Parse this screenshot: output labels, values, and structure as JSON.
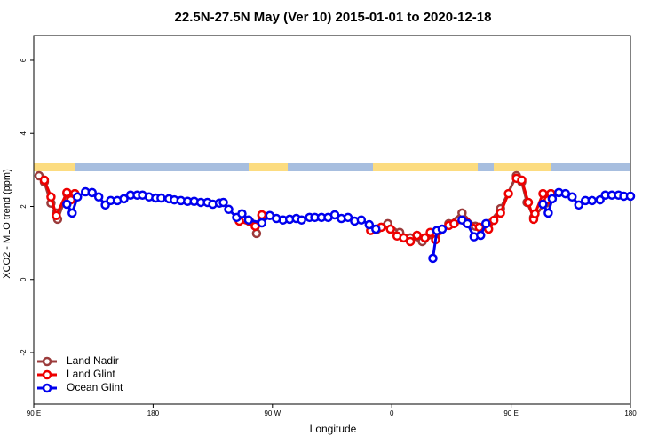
{
  "chart_data": {
    "type": "line",
    "title": "22.5N-27.5N May (Ver 10)   2015-01-01 to 2020-12-18",
    "x_label": "Longitude",
    "y_label": "XCO2 - MLO trend (ppm)",
    "xlim": [
      90,
      540
    ],
    "ylim": [
      -3.41,
      6.68
    ],
    "xticks": [
      {
        "value": 90,
        "label": "90 E"
      },
      180,
      {
        "value": 270,
        "label": "90 W"
      },
      {
        "value": 360,
        "label": "0"
      },
      {
        "value": 450,
        "label": "90 E"
      },
      {
        "value": 540,
        "label": "180"
      }
    ],
    "yticks": [
      -2,
      0,
      2,
      4,
      6
    ],
    "legend": "bottom-left",
    "series": [
      {
        "name": "Land Nadir",
        "color": "#9b3b3b",
        "x": [
          94,
          98,
          103,
          107,
          108,
          115,
          119,
          121,
          null,
          253,
          258,
          262,
          null,
          349,
          357,
          366,
          374,
          383,
          393,
          403,
          413,
          423,
          433,
          442,
          454,
          458,
          462,
          467,
          476,
          480
        ],
        "values": [
          2.84,
          2.67,
          2.09,
          1.82,
          1.65,
          2.35,
          2.26,
          2.35,
          null,
          1.58,
          1.26,
          1.75,
          null,
          1.38,
          1.53,
          1.29,
          1.14,
          1.04,
          1.21,
          1.53,
          1.82,
          1.46,
          1.53,
          1.94,
          2.84,
          2.67,
          2.11,
          1.7,
          2.09,
          2.35
        ]
      },
      {
        "name": "Land Glint",
        "color": "#ee0000",
        "x": [
          98,
          103,
          107,
          115,
          118,
          121,
          null,
          245,
          257,
          262,
          null,
          344,
          352,
          359,
          364,
          369,
          374,
          379,
          385,
          389,
          393,
          396,
          403,
          407,
          416,
          426,
          433,
          437,
          442,
          448,
          null,
          454,
          458,
          463,
          467,
          468,
          474,
          478,
          480
        ],
        "values": [
          2.72,
          2.26,
          1.75,
          2.38,
          2.18,
          2.35,
          null,
          1.6,
          1.46,
          1.77,
          null,
          1.34,
          1.43,
          1.38,
          1.19,
          1.14,
          1.04,
          1.21,
          1.14,
          1.29,
          1.09,
          1.34,
          1.48,
          1.53,
          1.58,
          1.43,
          1.38,
          1.62,
          1.82,
          2.35,
          null,
          2.77,
          2.72,
          2.11,
          1.65,
          1.8,
          2.35,
          2.18,
          2.35
        ]
      },
      {
        "name": "Ocean Glint",
        "color": "#0000ee",
        "x": [
          115,
          119,
          123,
          129,
          134,
          139,
          144,
          148,
          153,
          158,
          163,
          168,
          172,
          177,
          182,
          186,
          192,
          196,
          201,
          206,
          211,
          216,
          221,
          225,
          230,
          233,
          237,
          243,
          247,
          252,
          262,
          268,
          273,
          278,
          283,
          288,
          292,
          298,
          302,
          307,
          312,
          317,
          322,
          327,
          332,
          337,
          343,
          348,
          null,
          391,
          394,
          398,
          null,
          413,
          417,
          422,
          427,
          431,
          null,
          474,
          478,
          481,
          486,
          491,
          496,
          501,
          506,
          511,
          517,
          521,
          526,
          531,
          535,
          540
        ],
        "values": [
          2.06,
          1.82,
          2.26,
          2.4,
          2.38,
          2.26,
          2.04,
          2.16,
          2.16,
          2.21,
          2.31,
          2.31,
          2.31,
          2.26,
          2.23,
          2.23,
          2.21,
          2.18,
          2.16,
          2.14,
          2.14,
          2.11,
          2.11,
          2.06,
          2.09,
          2.11,
          1.92,
          1.7,
          1.8,
          1.63,
          1.55,
          1.75,
          1.67,
          1.63,
          1.65,
          1.67,
          1.63,
          1.7,
          1.7,
          1.7,
          1.7,
          1.77,
          1.67,
          1.7,
          1.6,
          1.63,
          1.5,
          1.38,
          null,
          0.58,
          1.34,
          1.38,
          null,
          1.63,
          1.53,
          1.17,
          1.21,
          1.53,
          null,
          2.06,
          1.82,
          2.21,
          2.38,
          2.35,
          2.26,
          2.04,
          2.16,
          2.16,
          2.18,
          2.31,
          2.31,
          2.31,
          2.28,
          2.28
        ]
      }
    ]
  }
}
